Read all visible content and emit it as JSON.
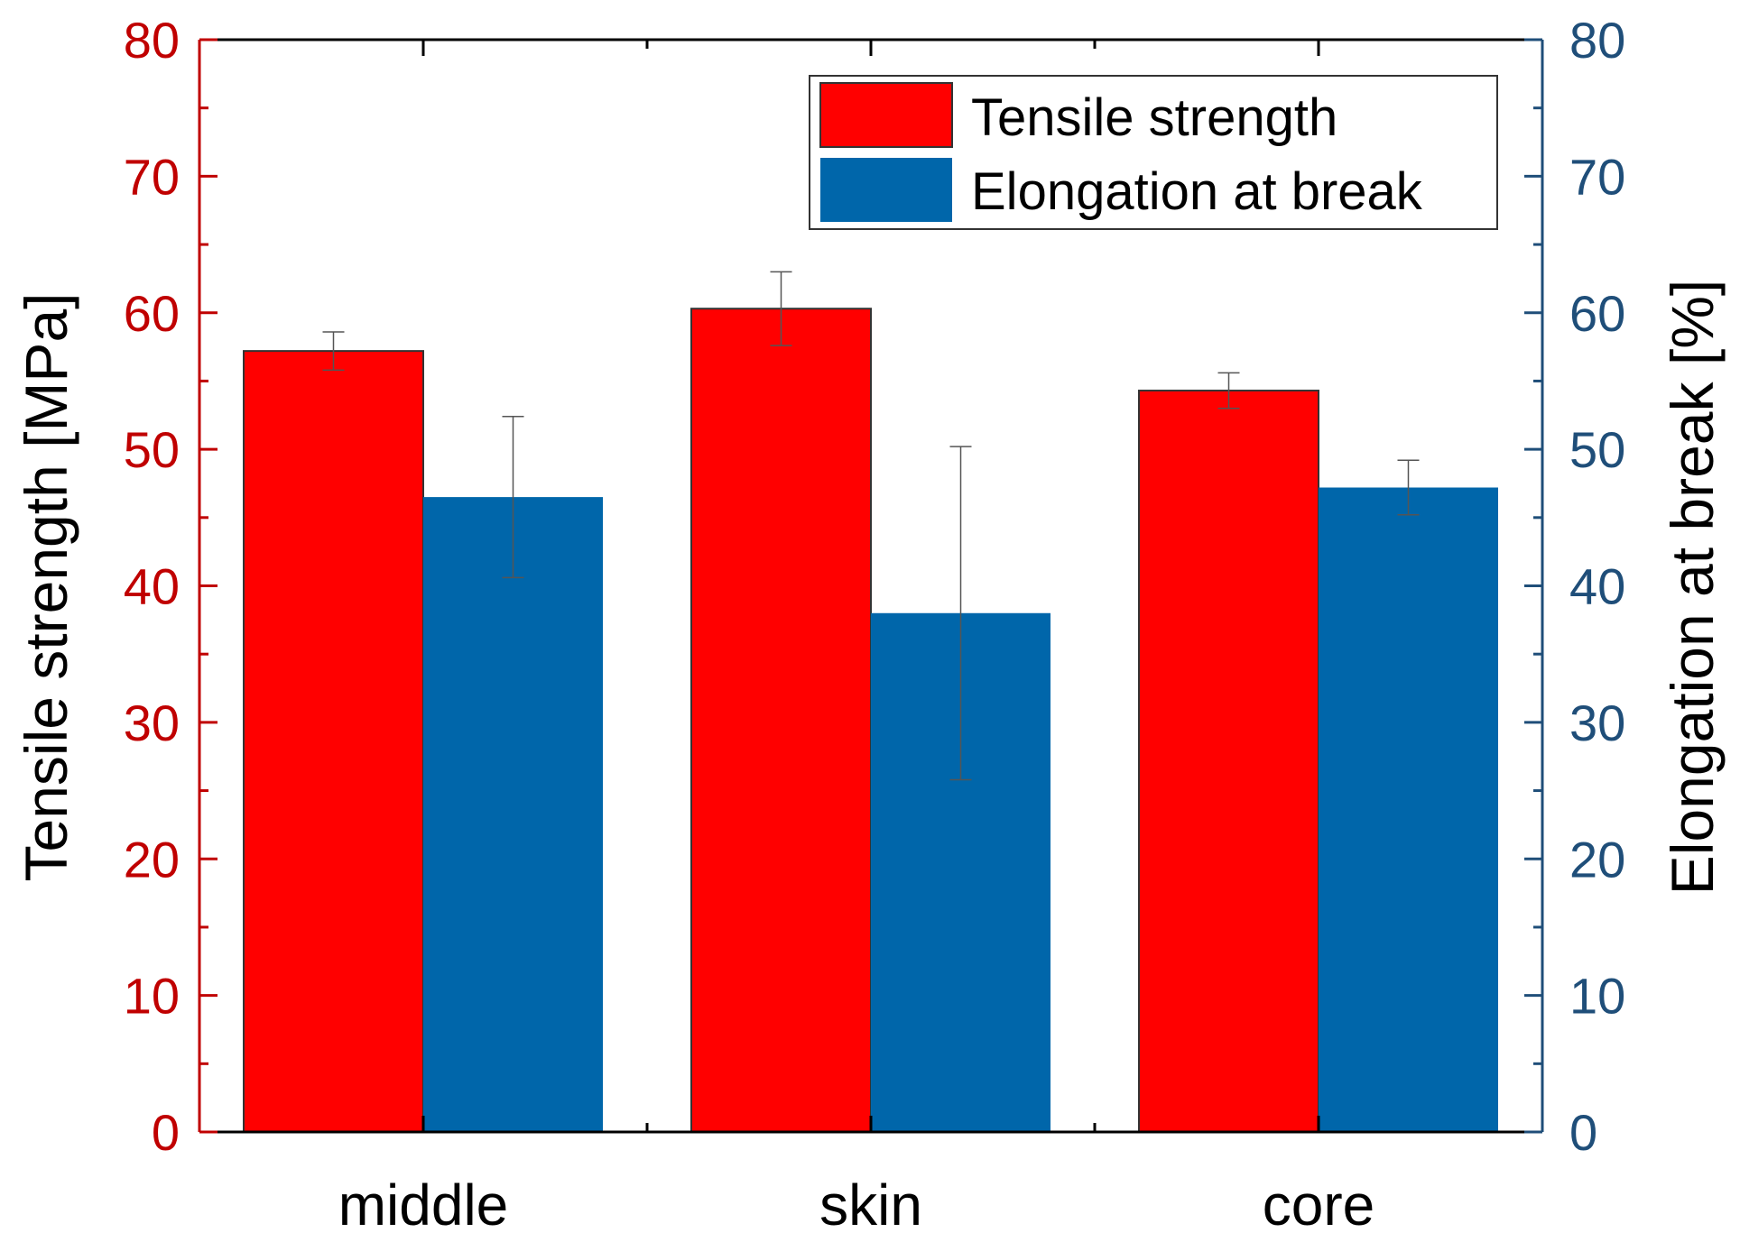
{
  "chart_data": {
    "type": "bar",
    "categories": [
      "middle",
      "skin",
      "core"
    ],
    "series": [
      {
        "name": "Tensile strength",
        "axis": "left",
        "color": "#ff0000",
        "values": [
          57.2,
          60.3,
          54.3
        ],
        "errors": [
          1.4,
          2.7,
          1.3
        ]
      },
      {
        "name": "Elongation at break",
        "axis": "right",
        "color": "#0066aa",
        "values": [
          46.5,
          38.0,
          47.2
        ],
        "errors": [
          5.9,
          12.2,
          2.0
        ]
      }
    ],
    "ylabel_left": "Tensile strength [MPa]",
    "ylabel_right": "Elongation at break [%]",
    "xlabel": "",
    "ylim_left": [
      0,
      80
    ],
    "ylim_right": [
      0,
      80
    ],
    "yticks_left": [
      "0",
      "10",
      "20",
      "30",
      "40",
      "50",
      "60",
      "70",
      "80"
    ],
    "yticks_right": [
      "0",
      "10",
      "20",
      "30",
      "40",
      "50",
      "60",
      "70",
      "80"
    ],
    "left_axis_color": "#c00000",
    "right_axis_color": "#1f4e79",
    "legend_position": "top-right",
    "grid": false
  }
}
